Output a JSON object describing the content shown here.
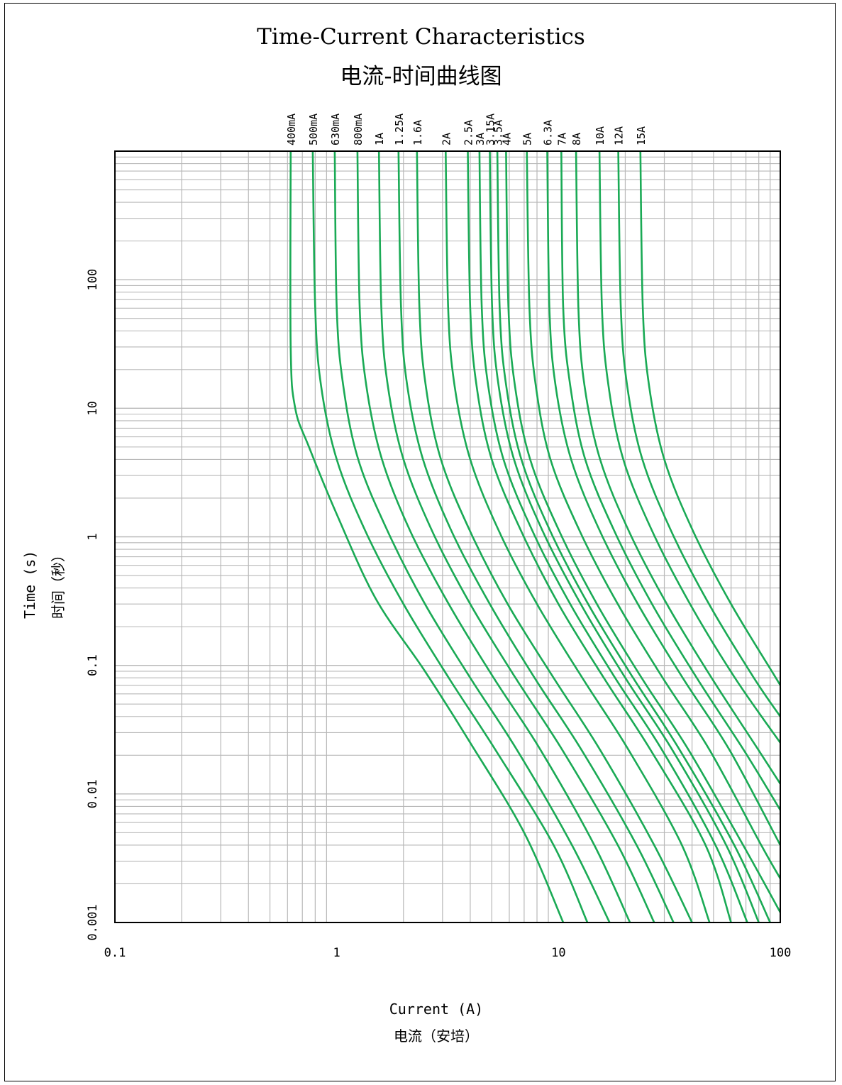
{
  "chart_data": {
    "type": "line",
    "title": "Time-Current Characteristics",
    "subtitle": "电流-时间曲线图",
    "xlabel": [
      "Current (A)",
      "电流（安培）"
    ],
    "ylabel": [
      "Time (s)",
      "时间（秒）"
    ],
    "x_scale": "log",
    "y_scale": "log",
    "xlim": [
      0.1,
      100
    ],
    "ylim": [
      0.001,
      1000
    ],
    "x_ticks": [
      "0.1",
      "1",
      "10",
      "100"
    ],
    "y_ticks": [
      "0.001",
      "0.01",
      "0.1",
      "1",
      "10",
      "100"
    ],
    "grid": true,
    "line_color": "#1aaa55",
    "grid_color": "#b8b8b8",
    "series": [
      {
        "name": "400mA",
        "x": [
          0.62,
          0.62,
          0.65,
          0.75,
          1.0,
          1.5,
          2.5,
          4.0,
          7.0,
          10.5
        ],
        "y": [
          1000,
          30,
          10,
          5,
          1.5,
          0.33,
          0.09,
          0.025,
          0.005,
          0.001
        ]
      },
      {
        "name": "500mA",
        "x": [
          0.78,
          0.8,
          0.85,
          1.0,
          1.35,
          2.0,
          3.2,
          5.2,
          9.5,
          13.5
        ],
        "y": [
          1000,
          60,
          15,
          4,
          1.1,
          0.3,
          0.08,
          0.022,
          0.004,
          0.001
        ]
      },
      {
        "name": "630mA",
        "x": [
          0.98,
          1.0,
          1.07,
          1.25,
          1.7,
          2.5,
          4.0,
          6.5,
          11.5,
          17.0
        ],
        "y": [
          1000,
          60,
          15,
          4,
          1.1,
          0.3,
          0.08,
          0.022,
          0.004,
          0.001
        ]
      },
      {
        "name": "800mA",
        "x": [
          1.24,
          1.27,
          1.36,
          1.6,
          2.15,
          3.2,
          5.1,
          8.3,
          14.5,
          21.0
        ],
        "y": [
          1000,
          60,
          15,
          4,
          1.1,
          0.3,
          0.08,
          0.022,
          0.004,
          0.001
        ]
      },
      {
        "name": "1A",
        "x": [
          1.55,
          1.59,
          1.7,
          2.0,
          2.7,
          4.0,
          6.4,
          10.4,
          18.5,
          27.0
        ],
        "y": [
          1000,
          60,
          15,
          4,
          1.1,
          0.3,
          0.08,
          0.022,
          0.004,
          0.001
        ]
      },
      {
        "name": "1.25A",
        "x": [
          1.9,
          1.95,
          2.08,
          2.45,
          3.3,
          4.9,
          7.8,
          12.7,
          22.5,
          33.0
        ],
        "y": [
          1000,
          60,
          15,
          4,
          1.1,
          0.3,
          0.08,
          0.022,
          0.004,
          0.001
        ]
      },
      {
        "name": "1.6A",
        "x": [
          2.3,
          2.36,
          2.52,
          2.95,
          4.0,
          5.9,
          9.5,
          15.4,
          27.0,
          40.0
        ],
        "y": [
          1000,
          60,
          15,
          4,
          1.1,
          0.3,
          0.08,
          0.022,
          0.004,
          0.001
        ]
      },
      {
        "name": "2A",
        "x": [
          3.1,
          3.18,
          3.4,
          4.0,
          5.4,
          8.0,
          12.8,
          20.7,
          36.0,
          48.0
        ],
        "y": [
          1000,
          60,
          15,
          4,
          1.1,
          0.3,
          0.08,
          0.022,
          0.004,
          0.001
        ]
      },
      {
        "name": "2.5A",
        "x": [
          3.9,
          4.0,
          4.27,
          5.0,
          6.8,
          10.0,
          16.0,
          26.0,
          46.0,
          60.0
        ],
        "y": [
          1000,
          60,
          15,
          4,
          1.1,
          0.3,
          0.08,
          0.022,
          0.004,
          0.001
        ]
      },
      {
        "name": "3A",
        "x": [
          4.4,
          4.51,
          4.82,
          5.65,
          7.65,
          11.3,
          18.0,
          29.3,
          51.0,
          71.0
        ],
        "y": [
          1000,
          60,
          15,
          4,
          1.1,
          0.3,
          0.08,
          0.022,
          0.004,
          0.001
        ]
      },
      {
        "name": "3.15A",
        "x": [
          4.9,
          5.02,
          5.37,
          6.3,
          8.5,
          12.6,
          20.0,
          32.6,
          57.0,
          80.0
        ],
        "y": [
          1000,
          60,
          15,
          4,
          1.1,
          0.3,
          0.08,
          0.022,
          0.004,
          0.001
        ]
      },
      {
        "name": "3.5A",
        "x": [
          5.3,
          5.43,
          5.81,
          6.8,
          9.2,
          13.6,
          21.7,
          35.2,
          62.0,
          90.0
        ],
        "y": [
          1000,
          60,
          15,
          4,
          1.1,
          0.3,
          0.08,
          0.022,
          0.004,
          0.001
        ]
      },
      {
        "name": "4A",
        "x": [
          5.8,
          5.95,
          6.36,
          7.45,
          10.1,
          14.9,
          23.7,
          38.6,
          68.0,
          100.0
        ],
        "y": [
          1000,
          60,
          15,
          4,
          1.1,
          0.3,
          0.08,
          0.022,
          0.004,
          0.0012
        ]
      },
      {
        "name": "5A",
        "x": [
          7.2,
          7.4,
          7.9,
          9.2,
          12.5,
          18.5,
          29.5,
          48.0,
          82.0,
          100.0
        ],
        "y": [
          1000,
          60,
          15,
          4,
          1.1,
          0.3,
          0.08,
          0.022,
          0.004,
          0.0022
        ]
      },
      {
        "name": "6.3A",
        "x": [
          8.9,
          9.1,
          9.7,
          11.4,
          15.4,
          22.8,
          36.3,
          59.0,
          100.0
        ],
        "y": [
          1000,
          60,
          15,
          4,
          1.1,
          0.3,
          0.08,
          0.022,
          0.004
        ]
      },
      {
        "name": "7A",
        "x": [
          10.3,
          10.5,
          11.3,
          13.2,
          17.9,
          26.4,
          42.0,
          68.4,
          100.0
        ],
        "y": [
          1000,
          60,
          15,
          4,
          1.1,
          0.3,
          0.08,
          0.022,
          0.0075
        ]
      },
      {
        "name": "8A",
        "x": [
          12.0,
          12.3,
          13.1,
          15.4,
          20.8,
          30.8,
          49.0,
          79.7,
          100.0
        ],
        "y": [
          1000,
          60,
          15,
          4,
          1.1,
          0.3,
          0.08,
          0.022,
          0.012
        ]
      },
      {
        "name": "10A",
        "x": [
          15.3,
          15.7,
          16.8,
          19.6,
          26.5,
          39.2,
          62.4,
          100.0
        ],
        "y": [
          1000,
          60,
          15,
          4,
          1.1,
          0.3,
          0.08,
          0.025
        ]
      },
      {
        "name": "12A",
        "x": [
          18.6,
          19.1,
          20.4,
          23.9,
          32.3,
          47.7,
          76.0,
          100.0
        ],
        "y": [
          1000,
          60,
          15,
          4,
          1.1,
          0.3,
          0.08,
          0.04
        ]
      },
      {
        "name": "15A",
        "x": [
          23.4,
          24.0,
          25.6,
          30.0,
          40.5,
          60.0,
          95.5,
          100.0
        ],
        "y": [
          1000,
          60,
          15,
          4,
          1.1,
          0.3,
          0.08,
          0.07
        ]
      }
    ]
  }
}
